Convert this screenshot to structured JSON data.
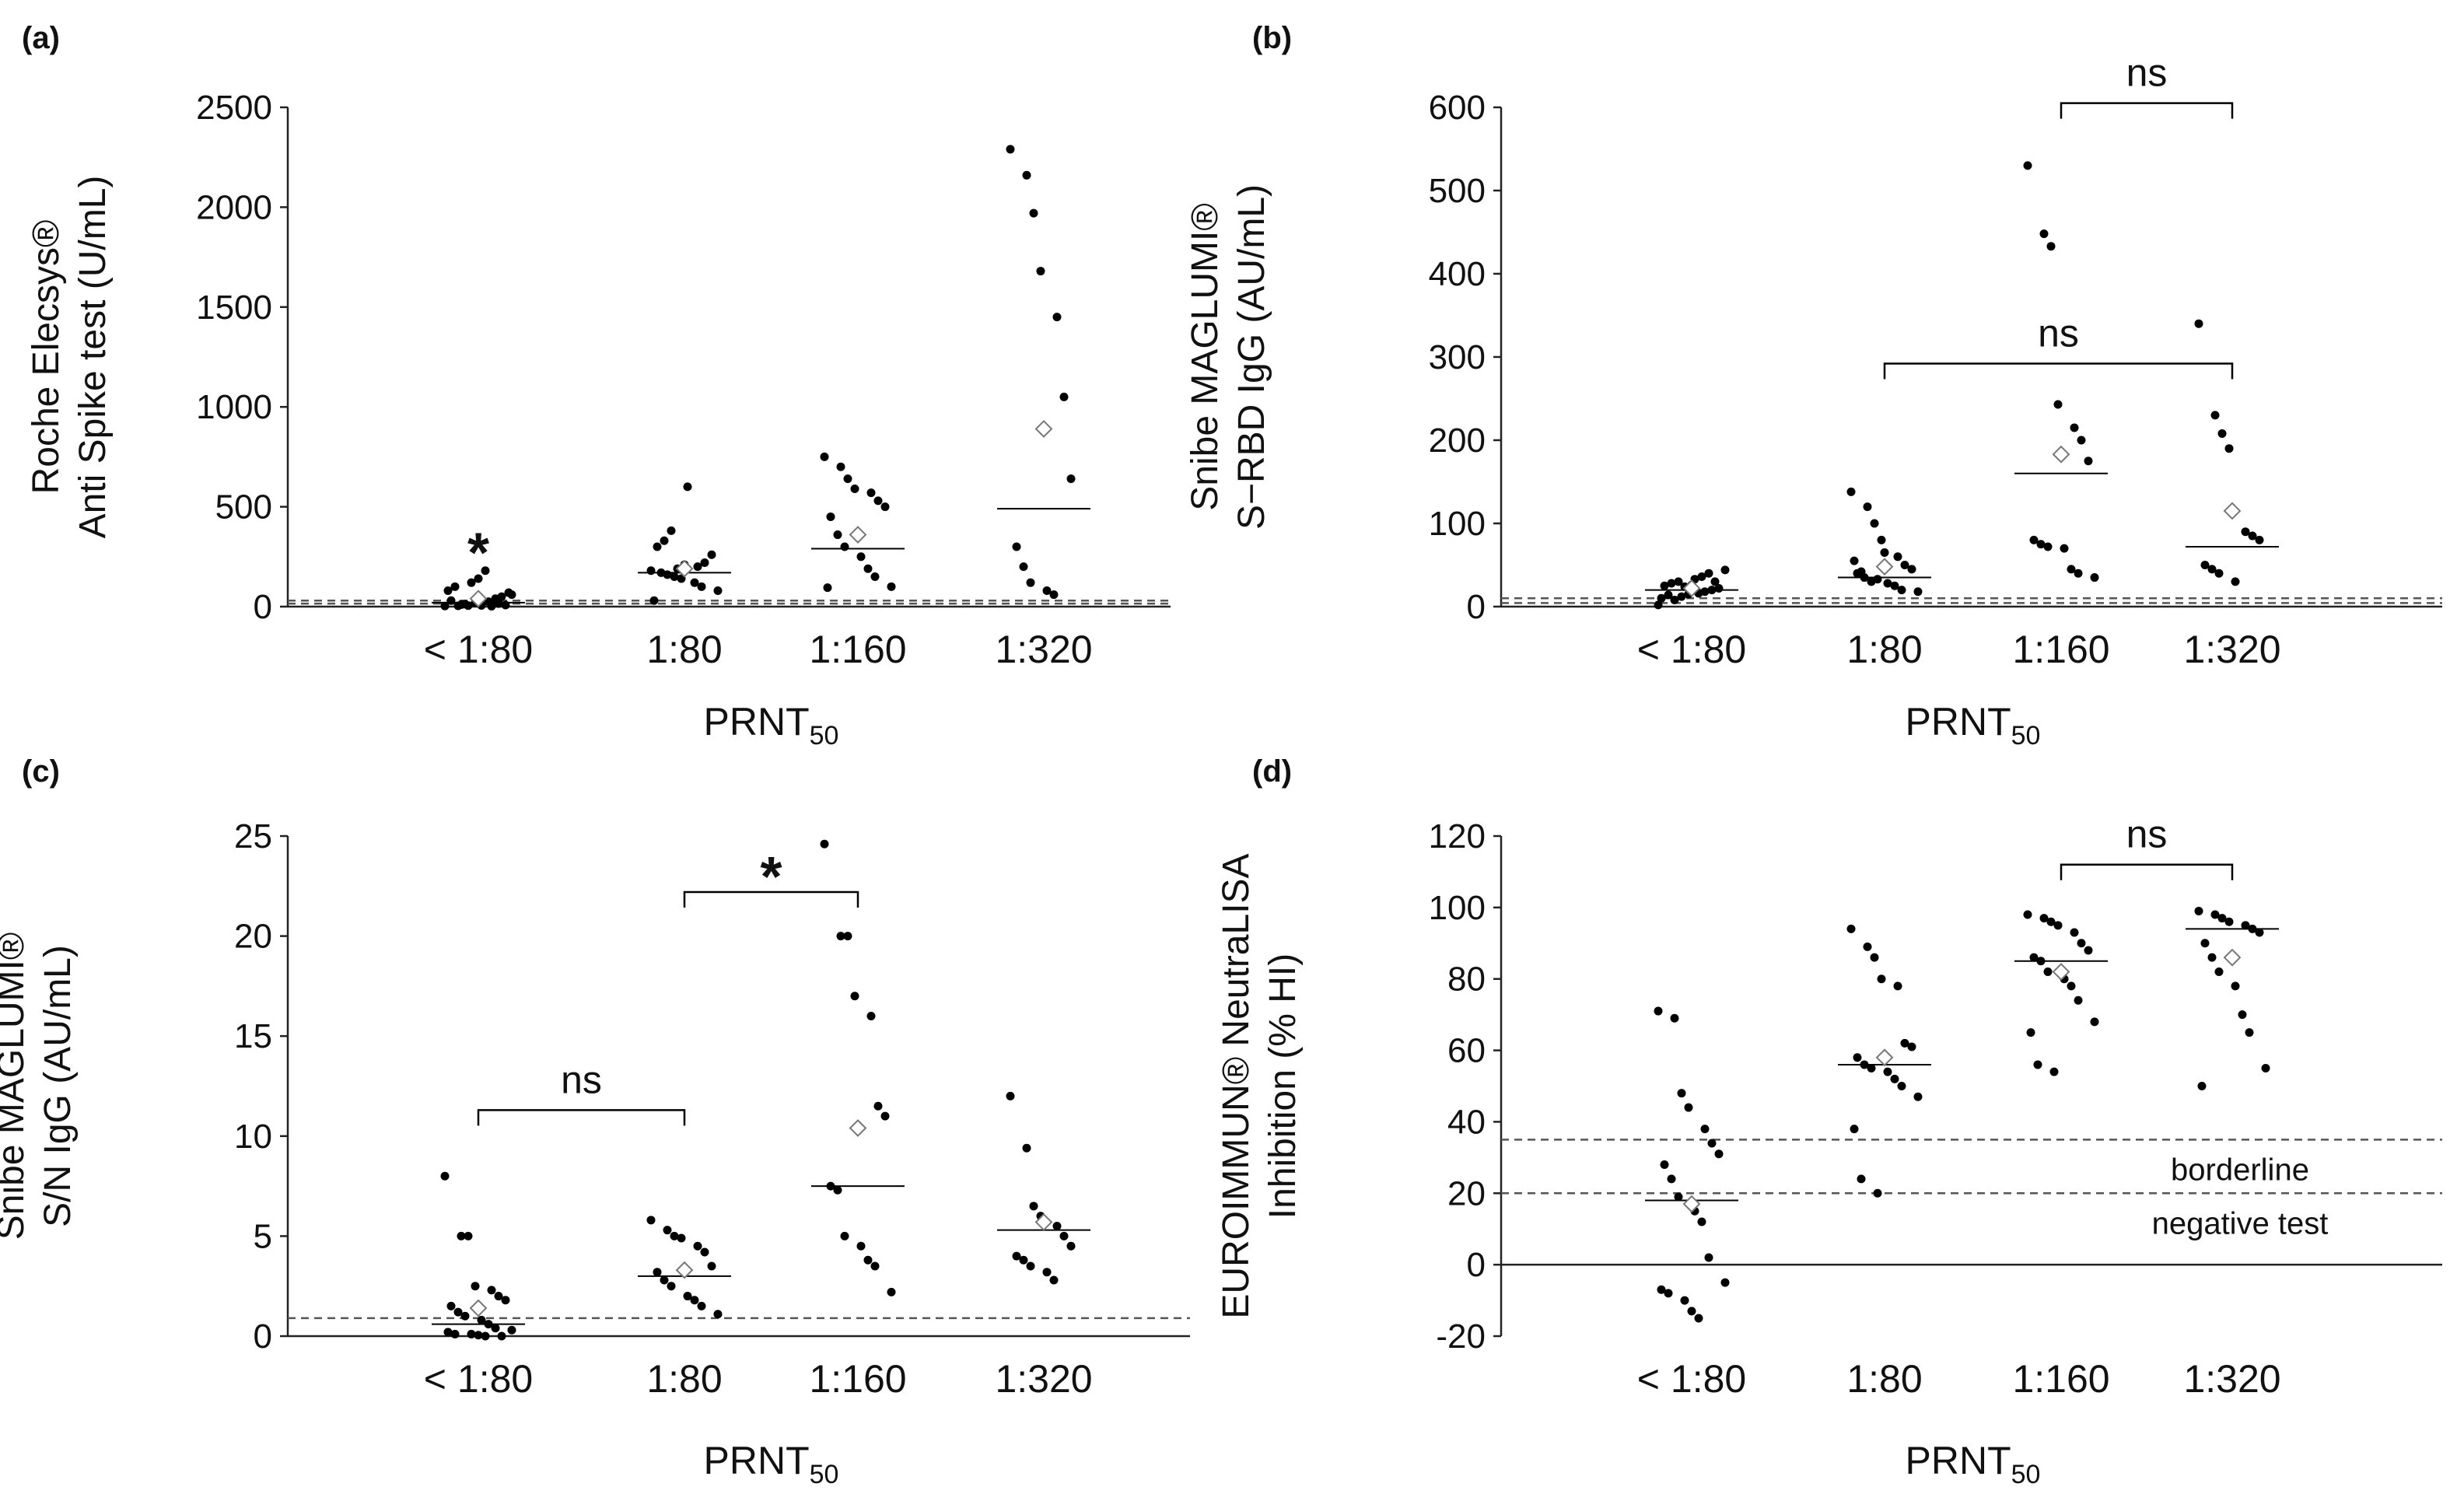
{
  "figure": {
    "panels": [
      "(a)",
      "(b)",
      "(c)",
      "(d)"
    ]
  },
  "chart_data": [
    {
      "panel_label": "(a)",
      "type": "scatter",
      "categories": [
        "< 1:80",
        "1:80",
        "1:160",
        "1:320"
      ],
      "xlabel": "PRNT",
      "xlabel_sub": "50",
      "ylabel_lines": [
        "Roche Elecsys®",
        "Anti Spike test (U/mL)"
      ],
      "ylim": [
        0,
        2500
      ],
      "yticks": [
        0,
        500,
        1000,
        1500,
        2000,
        2500
      ],
      "cutoff_lines": [
        {
          "value": 15,
          "label": ""
        },
        {
          "value": 30,
          "label": ""
        }
      ],
      "points": [
        [
          3,
          10,
          5,
          20,
          2,
          15,
          8,
          30,
          4,
          12,
          6,
          25,
          40,
          60,
          80,
          100,
          120,
          140,
          180,
          50,
          70
        ],
        [
          180,
          160,
          150,
          140,
          200,
          220,
          260,
          300,
          330,
          380,
          600,
          120,
          100,
          80,
          30,
          170,
          190,
          210
        ],
        [
          750,
          700,
          640,
          590,
          570,
          530,
          500,
          450,
          360,
          300,
          250,
          190,
          150,
          100,
          95
        ],
        [
          2290,
          2160,
          1970,
          1680,
          1450,
          1050,
          640,
          300,
          200,
          120,
          80,
          60
        ]
      ],
      "medians": [
        20,
        170,
        290,
        490
      ],
      "means": [
        40,
        190,
        360,
        890
      ],
      "significance": [
        {
          "from": 0,
          "to": 0,
          "text": "*",
          "value": 330
        }
      ]
    },
    {
      "panel_label": "(b)",
      "type": "scatter",
      "categories": [
        "< 1:80",
        "1:80",
        "1:160",
        "1:320"
      ],
      "xlabel": "PRNT",
      "xlabel_sub": "50",
      "ylabel_lines": [
        "Snibe MAGLUMI®",
        "S−RBD IgG (AU/mL)"
      ],
      "ylim": [
        0,
        600
      ],
      "yticks": [
        0,
        100,
        200,
        300,
        400,
        500,
        600
      ],
      "cutoff_lines": [
        {
          "value": 4.3,
          "label": ""
        },
        {
          "value": 10,
          "label": ""
        }
      ],
      "points": [
        [
          2,
          8,
          12,
          15,
          18,
          20,
          22,
          25,
          28,
          30,
          33,
          36,
          40,
          44,
          10,
          14,
          24,
          26,
          16,
          30
        ],
        [
          138,
          120,
          100,
          80,
          60,
          50,
          45,
          40,
          35,
          30,
          28,
          25,
          20,
          18,
          55,
          42,
          33,
          65
        ],
        [
          530,
          448,
          433,
          243,
          215,
          200,
          175,
          80,
          75,
          72,
          70,
          45,
          40,
          35
        ],
        [
          340,
          230,
          208,
          190,
          90,
          85,
          80,
          50,
          45,
          40,
          30
        ]
      ],
      "medians": [
        20,
        35,
        160,
        72
      ],
      "means": [
        22,
        48,
        183,
        115
      ],
      "significance": [
        {
          "from": 2,
          "to": 3,
          "text": "ns",
          "value": 605
        },
        {
          "from": 1,
          "to": 3,
          "text": "ns",
          "value": 292
        }
      ]
    },
    {
      "panel_label": "(c)",
      "type": "scatter",
      "categories": [
        "< 1:80",
        "1:80",
        "1:160",
        "1:320"
      ],
      "xlabel": "PRNT",
      "xlabel_sub": "50",
      "ylabel_lines": [
        "Snibe MAGLUMI®",
        "S/N IgG (AU/mL)"
      ],
      "ylim": [
        0,
        25
      ],
      "yticks": [
        0,
        5,
        10,
        15,
        20,
        25
      ],
      "cutoff_lines": [
        {
          "value": 0.9,
          "label": ""
        }
      ],
      "points": [
        [
          8,
          5,
          5,
          2.5,
          2.3,
          2,
          1.8,
          1.5,
          1.2,
          1,
          0.8,
          0.6,
          0.4,
          0.3,
          0.2,
          0.1,
          0.1,
          0.05,
          0,
          0
        ],
        [
          5.8,
          5.3,
          5,
          4.9,
          4.5,
          4.2,
          3.5,
          3.2,
          2.8,
          2.5,
          2,
          1.8,
          1.5,
          1.1
        ],
        [
          24.6,
          20,
          20,
          17,
          16,
          11.5,
          11,
          7.5,
          7.3,
          5,
          4.5,
          3.8,
          3.5,
          2.2
        ],
        [
          12,
          9.4,
          6.5,
          6,
          5.5,
          5,
          4.5,
          4,
          3.8,
          3.5,
          3.2,
          2.8
        ]
      ],
      "medians": [
        0.6,
        3,
        7.5,
        5.3
      ],
      "means": [
        1.4,
        3.3,
        10.4,
        5.7
      ],
      "significance": [
        {
          "from": 1,
          "to": 2,
          "text": "*",
          "value": 22.2
        },
        {
          "from": 0,
          "to": 1,
          "text": "ns",
          "value": 11.3
        }
      ]
    },
    {
      "panel_label": "(d)",
      "type": "scatter",
      "categories": [
        "< 1:80",
        "1:80",
        "1:160",
        "1:320"
      ],
      "xlabel": "PRNT",
      "xlabel_sub": "50",
      "ylabel_lines": [
        "EUROIMMUN® NeutraLISA",
        "Inhibition (% HI)"
      ],
      "ylim": [
        -20,
        120
      ],
      "yticks": [
        -20,
        0,
        20,
        40,
        60,
        80,
        100,
        120
      ],
      "cutoff_lines": [
        {
          "value": 35,
          "label": "borderline"
        },
        {
          "value": 20,
          "label": "negative test"
        }
      ],
      "points": [
        [
          71,
          69,
          48,
          44,
          38,
          34,
          31,
          28,
          24,
          19,
          15,
          12,
          2,
          -5,
          -7,
          -8,
          -10,
          -13,
          -15
        ],
        [
          94,
          89,
          86,
          80,
          78,
          62,
          61,
          58,
          56,
          55,
          54,
          52,
          50,
          47,
          38,
          24,
          20
        ],
        [
          98,
          97,
          96,
          95,
          93,
          90,
          88,
          86,
          85,
          82,
          80,
          78,
          74,
          68,
          65,
          56,
          54
        ],
        [
          99,
          98,
          97,
          96,
          95,
          94,
          93,
          90,
          86,
          82,
          78,
          70,
          65,
          55,
          50
        ]
      ],
      "medians": [
        18,
        56,
        85,
        94
      ],
      "means": [
        17,
        58,
        82,
        86
      ],
      "significance": [
        {
          "from": 2,
          "to": 3,
          "text": "ns",
          "value": 112
        }
      ]
    }
  ]
}
